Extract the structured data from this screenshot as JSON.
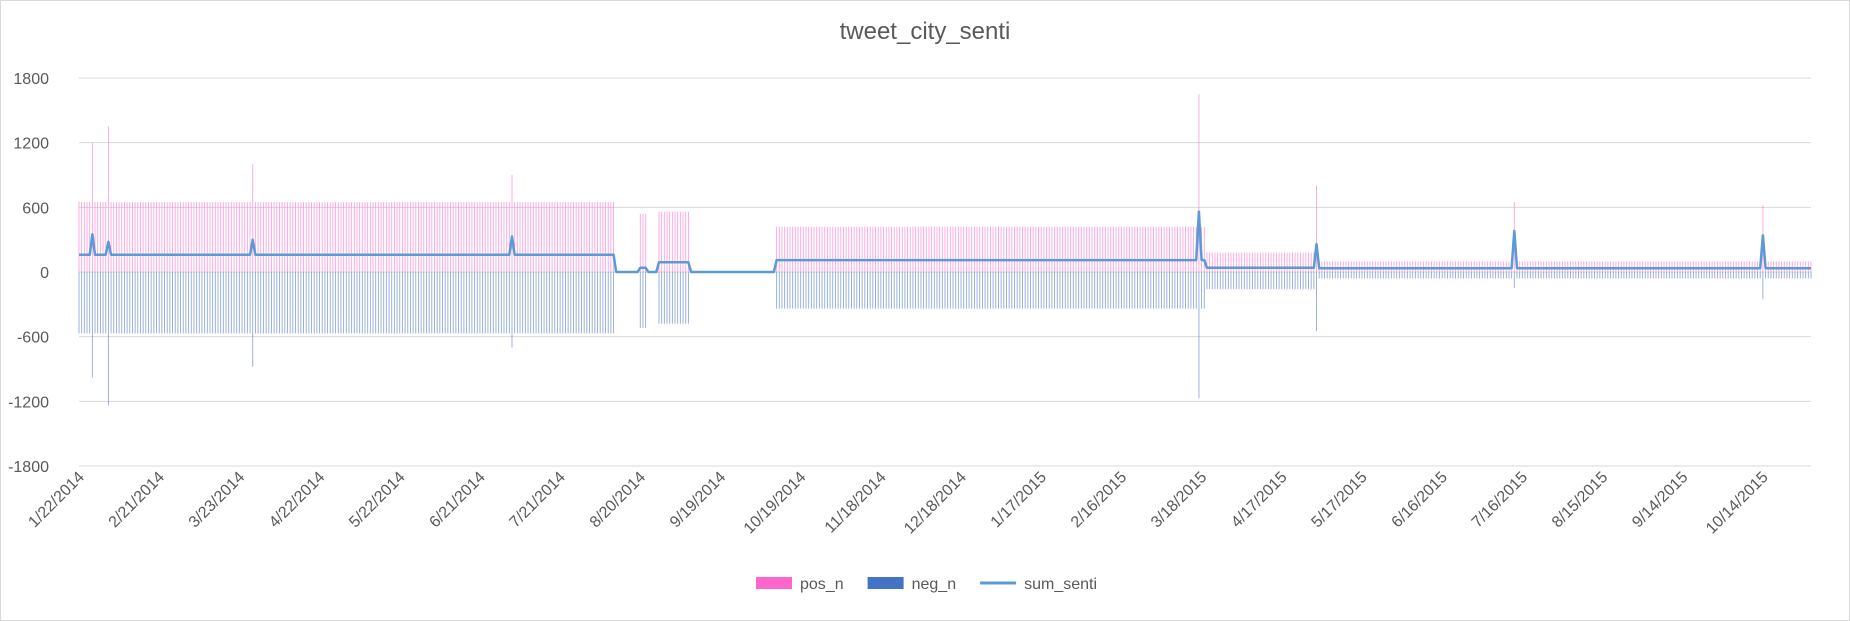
{
  "chart_data": {
    "type": "bar",
    "title": "tweet_city_senti",
    "xlabel": "",
    "ylabel": "",
    "ylim": [
      -1800,
      1800
    ],
    "y_ticks": [
      "1800",
      "1200",
      "600",
      "0",
      "-600",
      "-1200",
      "-1800"
    ],
    "x_tick_labels": [
      "1/22/2014",
      "2/21/2014",
      "3/23/2014",
      "4/22/2014",
      "5/22/2014",
      "6/21/2014",
      "7/21/2014",
      "8/20/2014",
      "9/19/2014",
      "10/19/2014",
      "11/18/2014",
      "12/18/2014",
      "1/17/2015",
      "2/16/2015",
      "3/18/2015",
      "4/17/2015",
      "5/17/2015",
      "6/16/2015",
      "7/16/2015",
      "8/15/2015",
      "9/14/2015",
      "10/14/2015"
    ],
    "x_range": [
      "1/22/2014",
      "11/1/2015"
    ],
    "grid": true,
    "legend_position": "bottom",
    "series": [
      {
        "name": "pos_n",
        "type": "bar",
        "color": "#ff66cc"
      },
      {
        "name": "neg_n",
        "type": "bar",
        "color": "#4472c4"
      },
      {
        "name": "sum_senti",
        "type": "line",
        "color": "#5b9bd5"
      }
    ],
    "segments": [
      {
        "range": [
          "1/22/2014",
          "8/10/2014"
        ],
        "pos_n": 650,
        "neg_n": -570,
        "sum_senti": 160
      },
      {
        "range": [
          "8/11/2014",
          "8/19/2014"
        ],
        "pos_n": 0,
        "neg_n": 0,
        "sum_senti": 0
      },
      {
        "range": [
          "8/20/2014",
          "8/22/2014"
        ],
        "pos_n": 540,
        "neg_n": -520,
        "sum_senti": 40
      },
      {
        "range": [
          "8/23/2014",
          "8/26/2014"
        ],
        "pos_n": 0,
        "neg_n": 0,
        "sum_senti": 0
      },
      {
        "range": [
          "8/27/2014",
          "9/7/2014"
        ],
        "pos_n": 560,
        "neg_n": -480,
        "sum_senti": 90
      },
      {
        "range": [
          "9/8/2014",
          "10/9/2014"
        ],
        "pos_n": 0,
        "neg_n": 0,
        "sum_senti": 0
      },
      {
        "range": [
          "10/10/2014",
          "3/19/2015"
        ],
        "pos_n": 420,
        "neg_n": -340,
        "sum_senti": 110
      },
      {
        "range": [
          "3/20/2015",
          "4/30/2015"
        ],
        "pos_n": 180,
        "neg_n": -160,
        "sum_senti": 40
      },
      {
        "range": [
          "5/1/2015",
          "11/1/2015"
        ],
        "pos_n": 100,
        "neg_n": -60,
        "sum_senti": 35
      }
    ],
    "peaks": [
      {
        "date": "1/27/2014",
        "pos_n": 1200,
        "neg_n": -980,
        "sum_senti": 350
      },
      {
        "date": "2/2/2014",
        "pos_n": 1350,
        "neg_n": -1240,
        "sum_senti": 280
      },
      {
        "date": "3/28/2014",
        "pos_n": 1000,
        "neg_n": -880,
        "sum_senti": 300
      },
      {
        "date": "7/3/2014",
        "pos_n": 900,
        "neg_n": -700,
        "sum_senti": 330
      },
      {
        "date": "3/17/2015",
        "pos_n": 1650,
        "neg_n": -1170,
        "sum_senti": 560
      },
      {
        "date": "4/30/2015",
        "pos_n": 800,
        "neg_n": -550,
        "sum_senti": 260
      },
      {
        "date": "7/13/2015",
        "pos_n": 650,
        "neg_n": -150,
        "sum_senti": 380
      },
      {
        "date": "10/14/2015",
        "pos_n": 620,
        "neg_n": -250,
        "sum_senti": 340
      }
    ]
  }
}
